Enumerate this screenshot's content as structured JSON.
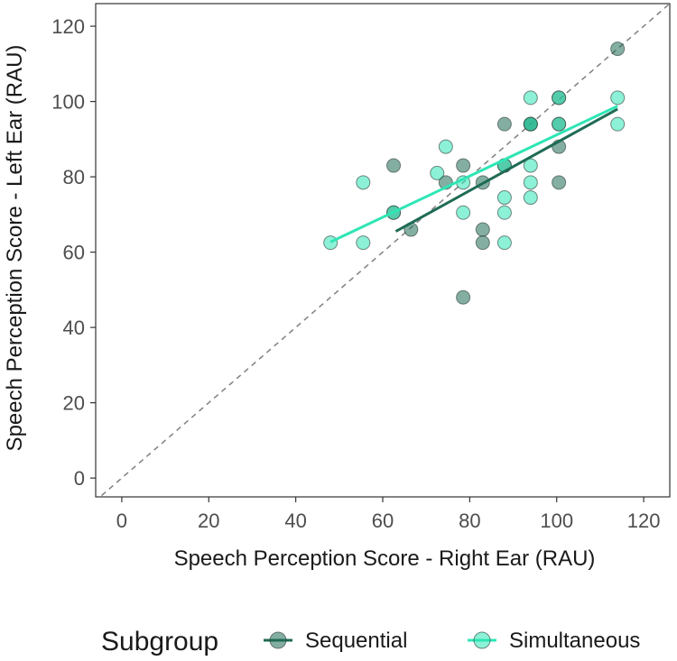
{
  "chart_data": {
    "type": "scatter",
    "title": "",
    "xlabel": "Speech Perception Score - Right Ear (RAU)",
    "ylabel": "Speech Perception Score - Left Ear (RAU)",
    "xlim": [
      -6,
      126
    ],
    "ylim": [
      -5,
      126
    ],
    "xticks": [
      0,
      20,
      40,
      60,
      80,
      100,
      120
    ],
    "yticks": [
      0,
      20,
      40,
      60,
      80,
      100,
      120
    ],
    "xtick_labels": [
      "0",
      "20",
      "40",
      "60",
      "80",
      "100",
      "120"
    ],
    "ytick_labels": [
      "0",
      "20",
      "40",
      "60",
      "80",
      "100",
      "120"
    ],
    "grid": false,
    "reference_line": {
      "slope": 1,
      "intercept": 0,
      "style": "dashed",
      "color": "#808080"
    },
    "legend": {
      "title": "Subgroup",
      "position": "bottom"
    },
    "series": [
      {
        "name": "Sequential",
        "color": "#1f6b55",
        "points": [
          [
            62.5,
            83.0
          ],
          [
            62.5,
            70.5
          ],
          [
            66.5,
            66.0
          ],
          [
            74.5,
            78.5
          ],
          [
            78.5,
            83.0
          ],
          [
            78.5,
            48.0
          ],
          [
            83.0,
            78.5
          ],
          [
            83.0,
            66.0
          ],
          [
            83.0,
            62.5
          ],
          [
            88.0,
            94.0
          ],
          [
            88.0,
            83.0
          ],
          [
            94.0,
            94.0
          ],
          [
            94.0,
            94.0
          ],
          [
            100.5,
            101.0
          ],
          [
            100.5,
            94.0
          ],
          [
            100.5,
            88.0
          ],
          [
            100.5,
            78.5
          ],
          [
            114.0,
            114.0
          ]
        ],
        "fit_line": {
          "x": [
            63.0,
            114.0
          ],
          "y": [
            65.5,
            98.0
          ]
        }
      },
      {
        "name": "Simultaneous",
        "color": "#2ee6b5",
        "points": [
          [
            48.0,
            62.5
          ],
          [
            55.5,
            78.5
          ],
          [
            55.5,
            62.5
          ],
          [
            62.5,
            70.5
          ],
          [
            72.5,
            81.0
          ],
          [
            74.5,
            88.0
          ],
          [
            78.5,
            78.5
          ],
          [
            78.5,
            70.5
          ],
          [
            88.0,
            83.0
          ],
          [
            88.0,
            74.5
          ],
          [
            88.0,
            70.5
          ],
          [
            88.0,
            62.5
          ],
          [
            94.0,
            101.0
          ],
          [
            94.0,
            94.0
          ],
          [
            94.0,
            83.0
          ],
          [
            94.0,
            78.5
          ],
          [
            94.0,
            74.5
          ],
          [
            100.5,
            101.0
          ],
          [
            100.5,
            94.0
          ],
          [
            114.0,
            101.0
          ],
          [
            114.0,
            94.0
          ]
        ],
        "fit_line": {
          "x": [
            48.0,
            114.0
          ],
          "y": [
            62.7,
            98.8
          ]
        }
      }
    ]
  }
}
